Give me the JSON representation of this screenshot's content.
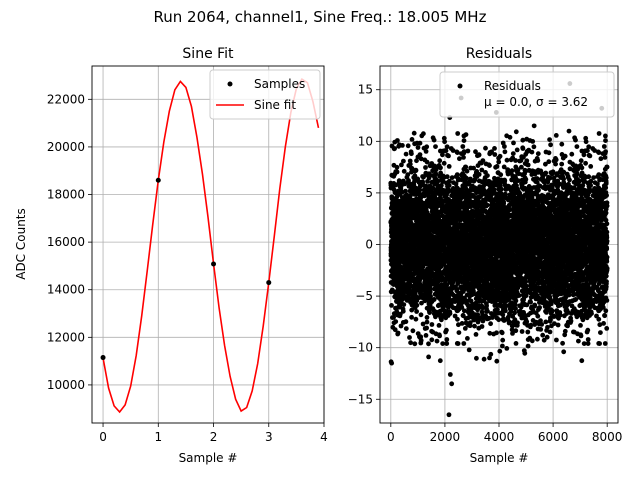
{
  "figure_title": "Run 2064, channel1, Sine Freq.: 18.005 MHz",
  "chart_data": [
    {
      "type": "line",
      "title": "Sine Fit",
      "xlabel": "Sample #",
      "ylabel": "ADC Counts",
      "xlim": [
        -0.2,
        4.0
      ],
      "ylim": [
        8400,
        23400
      ],
      "xticks": [
        0,
        1,
        2,
        3,
        4
      ],
      "yticks": [
        10000,
        12000,
        14000,
        16000,
        18000,
        20000,
        22000
      ],
      "grid": true,
      "legend": {
        "position": "top-right",
        "entries": [
          {
            "label": "Samples",
            "marker": "dot",
            "color": "#000000"
          },
          {
            "label": "Sine fit",
            "marker": "line",
            "color": "#ff0000"
          }
        ]
      },
      "samples": {
        "name": "Samples",
        "x": [
          0,
          1,
          2,
          3
        ],
        "y": [
          11150,
          18600,
          15080,
          14300
        ]
      },
      "fit": {
        "name": "Sine fit",
        "x": [
          0,
          0.1,
          0.2,
          0.3,
          0.4,
          0.5,
          0.6,
          0.7,
          0.8,
          0.9,
          1.0,
          1.1,
          1.2,
          1.3,
          1.4,
          1.5,
          1.6,
          1.7,
          1.8,
          1.9,
          2.0,
          2.1,
          2.2,
          2.3,
          2.4,
          2.5,
          2.6,
          2.7,
          2.8,
          2.9,
          3.0,
          3.1,
          3.2,
          3.3,
          3.4,
          3.5,
          3.6,
          3.7,
          3.8,
          3.9
        ],
        "y": [
          11130,
          9870,
          9120,
          8860,
          9160,
          9950,
          11230,
          12900,
          14800,
          16750,
          18600,
          20200,
          21500,
          22400,
          22750,
          22500,
          21700,
          20400,
          18850,
          17050,
          15100,
          13250,
          11660,
          10360,
          9400,
          8900,
          9050,
          9750,
          10900,
          12480,
          14300,
          16250,
          18250,
          20000,
          21450,
          22450,
          22850,
          22700,
          21900,
          20800
        ]
      }
    },
    {
      "type": "scatter",
      "title": "Residuals",
      "xlabel": "Sample #",
      "ylabel": "",
      "xlim": [
        -400,
        8400
      ],
      "ylim": [
        -17.3,
        17.3
      ],
      "xticks": [
        0,
        2000,
        4000,
        6000,
        8000
      ],
      "yticks": [
        -15,
        -10,
        -5,
        0,
        5,
        10,
        15
      ],
      "grid": true,
      "n_points": 8000,
      "mean": 0.0,
      "sigma": 3.62,
      "legend": {
        "position": "top-right",
        "entries": [
          {
            "label": "Residuals",
            "stats": "μ = 0.0, σ = 3.62",
            "marker": "dot",
            "color": "#000000"
          }
        ]
      },
      "outliers": {
        "x": [
          2150,
          2200,
          2250,
          2600,
          6620,
          30,
          2180,
          7800,
          3900,
          5300
        ],
        "y": [
          -16.5,
          -12.6,
          -13.5,
          14.2,
          15.6,
          -11.5,
          12.3,
          13.2,
          12.8,
          11.5
        ]
      }
    }
  ]
}
